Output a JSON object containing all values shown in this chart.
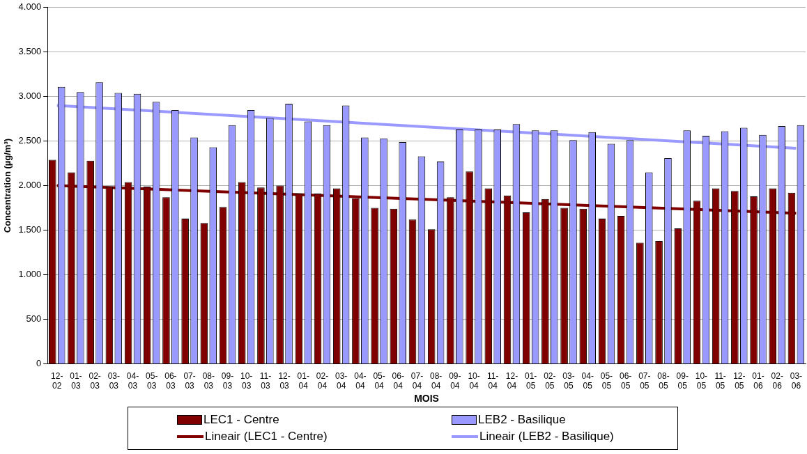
{
  "chart_data": {
    "type": "bar",
    "xlabel": "MOIS",
    "ylabel": "Concentration (µg/m³)",
    "categories": [
      "12-02",
      "01-03",
      "02-03",
      "03-03",
      "04-03",
      "05-03",
      "06-03",
      "07-03",
      "08-03",
      "09-03",
      "10-03",
      "11-03",
      "12-03",
      "01-04",
      "02-04",
      "03-04",
      "04-04",
      "05-04",
      "06-04",
      "07-04",
      "08-04",
      "09-04",
      "10-04",
      "11-04",
      "12-04",
      "01-05",
      "02-05",
      "03-05",
      "04-05",
      "05-05",
      "06-05",
      "07-05",
      "08-05",
      "09-05",
      "10-05",
      "11-05",
      "12-05",
      "01-06",
      "02-06",
      "03-06"
    ],
    "series": [
      {
        "name": "LEC1 - Centre",
        "color": "#800000",
        "values": [
          2290,
          2150,
          2280,
          1990,
          2040,
          1990,
          1870,
          1630,
          1580,
          1760,
          2040,
          1980,
          2000,
          1910,
          1910,
          1970,
          1860,
          1750,
          1740,
          1620,
          1510,
          1870,
          2160,
          1970,
          1890,
          1700,
          1850,
          1750,
          1740,
          1630,
          1660,
          1360,
          1380,
          1520,
          1830,
          1970,
          1940,
          1880,
          1970,
          1920
        ]
      },
      {
        "name": "LEB2 - Basilique",
        "color": "#9999ff",
        "values": [
          3110,
          3050,
          3160,
          3040,
          3030,
          2940,
          2850,
          2540,
          2430,
          2680,
          2850,
          2760,
          2920,
          2720,
          2680,
          2900,
          2540,
          2530,
          2490,
          2330,
          2270,
          2630,
          2630,
          2630,
          2690,
          2620,
          2620,
          2510,
          2600,
          2470,
          2510,
          2150,
          2310,
          2620,
          2560,
          2610,
          2650,
          2570,
          2670,
          2680
        ]
      },
      {
        "name": "Lineair (LEC1 - Centre)",
        "type": "line",
        "color": "#800000",
        "x": [
          "12-02",
          "03-06"
        ],
        "values": [
          2000,
          1690
        ]
      },
      {
        "name": "Lineair (LEB2 - Basilique)",
        "type": "line",
        "color": "#9999ff",
        "x": [
          "12-02",
          "03-06"
        ],
        "values": [
          2900,
          2420
        ]
      }
    ],
    "ylim": [
      0,
      4000
    ],
    "yticks": [
      0,
      500,
      {
        "value": 1000,
        "label": "1.000"
      },
      {
        "value": 1500,
        "label": "1.500"
      },
      {
        "value": 2000,
        "label": "2.000"
      },
      {
        "value": 2500,
        "label": "2.500"
      },
      {
        "value": 3000,
        "label": "3.000"
      },
      {
        "value": 3500,
        "label": "3.500"
      },
      {
        "value": 4000,
        "label": "4.000"
      }
    ],
    "grid": "y",
    "legend": "bottom",
    "marker": "none",
    "line_style": "solid"
  }
}
